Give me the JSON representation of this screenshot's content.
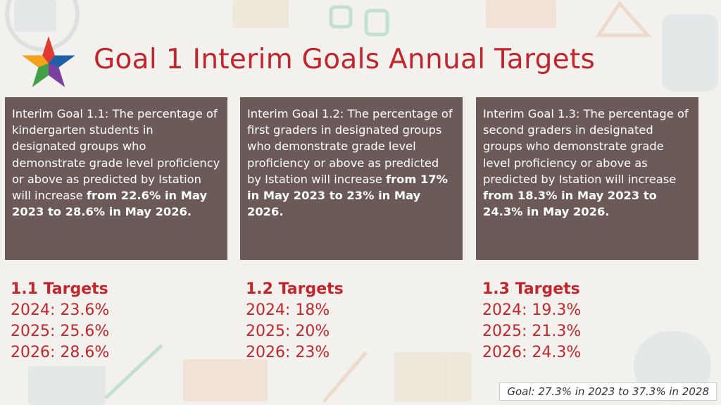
{
  "title": "Goal 1 Interim Goals Annual Targets",
  "accent_color": "#c0272d",
  "box_color": "#6b5a57",
  "boxes": [
    {
      "text": "Interim Goal 1.1: The percentage of kindergarten students in designated groups who demonstrate grade level proficiency or above as predicted by Istation will increase ",
      "bold": "from 22.6% in May 2023 to 28.6% in May 2026."
    },
    {
      "text": "Interim Goal 1.2: The percentage of first graders in designated groups who demonstrate grade level proficiency or above as predicted by Istation will increase ",
      "bold": "from 17% in May 2023 to 23% in May 2026."
    },
    {
      "text": "Interim Goal 1.3: The percentage of second graders in designated groups who demonstrate grade level proficiency or above as predicted by Istation will increase ",
      "bold": "from 18.3% in May 2023 to 24.3% in May 2026."
    }
  ],
  "targets": [
    {
      "heading": "1.1 Targets",
      "lines": [
        "2024: 23.6%",
        "2025: 25.6%",
        "2026: 28.6%"
      ]
    },
    {
      "heading": "1.2 Targets",
      "lines": [
        "2024: 18%",
        "2025: 20%",
        "2026: 23%"
      ]
    },
    {
      "heading": "1.3 Targets",
      "lines": [
        "2024: 19.3%",
        "2025: 21.3%",
        "2026: 24.3%"
      ]
    }
  ],
  "goal_note": "Goal: 27.3% in 2023 to 37.3% in 2028"
}
